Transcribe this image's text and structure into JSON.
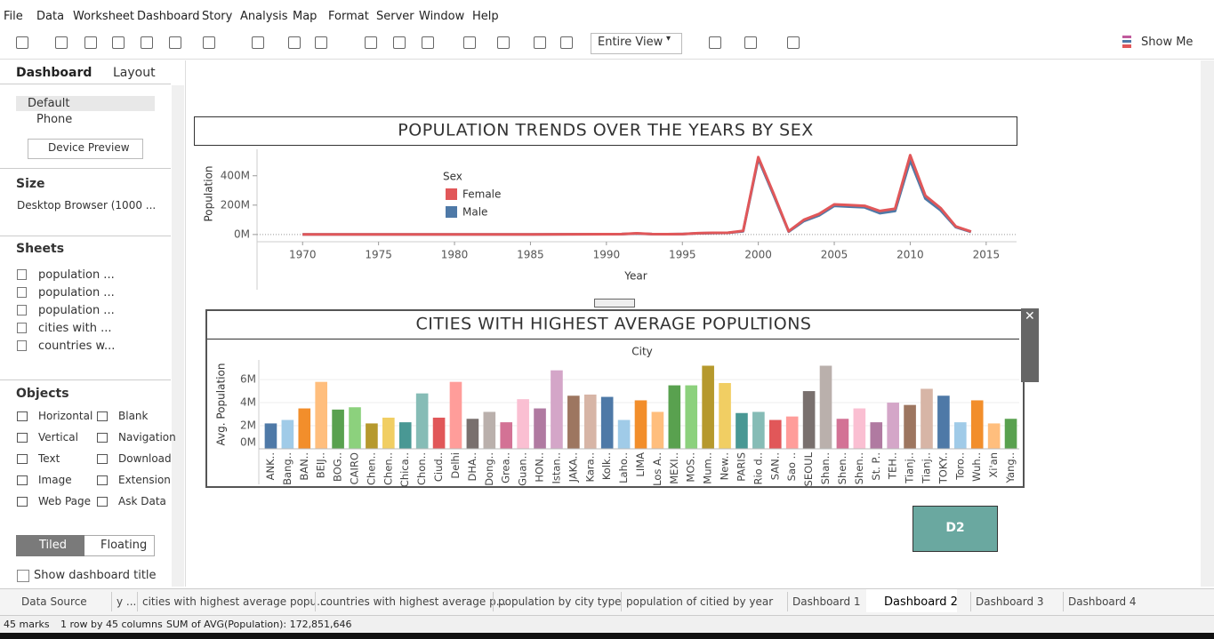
{
  "menu": [
    "File",
    "Data",
    "Worksheet",
    "Dashboard",
    "Story",
    "Analysis",
    "Map",
    "Format",
    "Server",
    "Window",
    "Help"
  ],
  "toolbar": {
    "fit": "Entire View",
    "show_me": "Show Me"
  },
  "left_panel": {
    "tabs": [
      "Dashboard",
      "Layout"
    ],
    "devices": [
      "Default",
      "Phone"
    ],
    "device_preview": "Device Preview",
    "size_label": "Size",
    "size_value": "Desktop Browser (1000 ...",
    "sheets_label": "Sheets",
    "sheets": [
      "population ...",
      "population ...",
      "population ...",
      "cities with ...",
      "countries w..."
    ],
    "objects_label": "Objects",
    "objects": [
      "Horizontal",
      "Blank",
      "Vertical",
      "Navigation",
      "Text",
      "Download",
      "Image",
      "Extension",
      "Web Page",
      "Ask Data"
    ],
    "layout_modes": [
      "Tiled",
      "Floating"
    ],
    "show_title": "Show dashboard title"
  },
  "chart_data": [
    {
      "type": "line",
      "title": "POPULATION TRENDS OVER THE YEARS BY SEX",
      "x_label": "Year",
      "y_label": "Population",
      "legend_title": "Sex",
      "x": [
        1970,
        1975,
        1980,
        1985,
        1990,
        1991,
        1992,
        1993,
        1994,
        1995,
        1996,
        1997,
        1998,
        1999,
        2000,
        2001,
        2002,
        2003,
        2004,
        2005,
        2006,
        2007,
        2008,
        2009,
        2010,
        2011,
        2012,
        2013,
        2014
      ],
      "series": [
        {
          "name": "Female",
          "color": "#e15759",
          "values": [
            1000000,
            1000000,
            1000000,
            1000000,
            2000000,
            3000000,
            8000000,
            3000000,
            2000000,
            3000000,
            9000000,
            11000000,
            12000000,
            25000000,
            527000000,
            280000000,
            22000000,
            100000000,
            140000000,
            205000000,
            200000000,
            195000000,
            160000000,
            175000000,
            540000000,
            265000000,
            180000000,
            55000000,
            20000000
          ]
        },
        {
          "name": "Male",
          "color": "#4e79a7",
          "values": [
            1000000,
            1000000,
            1000000,
            1000000,
            2000000,
            3000000,
            7000000,
            3000000,
            2000000,
            3000000,
            8000000,
            10000000,
            11000000,
            22000000,
            515000000,
            270000000,
            20000000,
            92000000,
            130000000,
            195000000,
            190000000,
            185000000,
            145000000,
            160000000,
            505000000,
            245000000,
            165000000,
            50000000,
            18000000
          ]
        }
      ],
      "xlim": [
        1967,
        2017
      ],
      "xticks": [
        1970,
        1975,
        1980,
        1985,
        1990,
        1995,
        2000,
        2005,
        2010,
        2015
      ],
      "ylim": [
        -25000000,
        580000000
      ],
      "yticks": [
        {
          "value": 0,
          "label": "0M"
        },
        {
          "value": 200000000,
          "label": "200M"
        },
        {
          "value": 400000000,
          "label": "400M"
        }
      ],
      "zero_line": true
    },
    {
      "type": "bar",
      "title": "CITIES WITH HIGHEST AVERAGE POPULTIONS",
      "x_label": "City",
      "y_label": "Avg. Population",
      "categories": [
        "ANK..",
        "Bang..",
        "BAN..",
        "BEIJ..",
        "BOG..",
        "CAIRO",
        "Chen..",
        "Chen..",
        "Chica..",
        "Chon..",
        "Ciud..",
        "Delhi",
        "DHA..",
        "Dong..",
        "Grea..",
        "Guan..",
        "HON..",
        "Istan..",
        "JAKA..",
        "Kara..",
        "Kolk..",
        "Laho..",
        "LIMA",
        "Los A..",
        "MEXI..",
        "MOS..",
        "Mum..",
        "New..",
        "PARIS",
        "Rio d..",
        "SAN..",
        "Sao ..",
        "SEOUL",
        "Shan..",
        "Shen..",
        "Shen..",
        "St. P..",
        "TEH..",
        "Tianj..",
        "Tianj..",
        "TOKY..",
        "Toro..",
        "Wuh..",
        "Xi'an",
        "Yang.."
      ],
      "values": [
        2200000,
        2500000,
        3500000,
        5800000,
        3400000,
        3600000,
        2200000,
        2700000,
        2300000,
        4800000,
        2700000,
        5800000,
        2600000,
        3200000,
        2300000,
        4300000,
        3500000,
        6800000,
        4600000,
        4700000,
        4500000,
        2500000,
        4200000,
        3200000,
        5500000,
        5500000,
        7200000,
        5700000,
        3100000,
        3200000,
        2500000,
        2800000,
        5000000,
        7200000,
        2600000,
        3500000,
        2300000,
        4000000,
        3800000,
        5200000,
        4600000,
        2300000,
        4200000,
        2200000,
        2600000
      ],
      "palette": [
        "#4e79a7",
        "#a0cbe8",
        "#f28e2b",
        "#ffbe7d",
        "#59a14f",
        "#8cd17d",
        "#b6992d",
        "#f1ce63",
        "#499894",
        "#86bcb6",
        "#e15759",
        "#ff9d9a",
        "#79706e",
        "#bab0ac",
        "#d37295",
        "#fabfd2",
        "#b07aa1",
        "#d4a6c8",
        "#9d7660",
        "#d7b5a6"
      ],
      "ylim": [
        0,
        7700000
      ],
      "yticks": [
        {
          "value": 0,
          "label": "0M"
        },
        {
          "value": 2000000,
          "label": "2M"
        },
        {
          "value": 4000000,
          "label": "4M"
        },
        {
          "value": 6000000,
          "label": "6M"
        }
      ]
    }
  ],
  "dashboard_object": "D2",
  "bottom_tabs": [
    "Data Source",
    "y ...",
    "cities with highest average popu...",
    "countries with highest average p...",
    "population by city type",
    "population of citied by year",
    "Dashboard 1",
    "Dashboard 2",
    "Dashboard 3",
    "Dashboard 4"
  ],
  "status": [
    "45 marks",
    "1 row by 45 columns",
    "SUM of AVG(Population): 172,851,646"
  ]
}
